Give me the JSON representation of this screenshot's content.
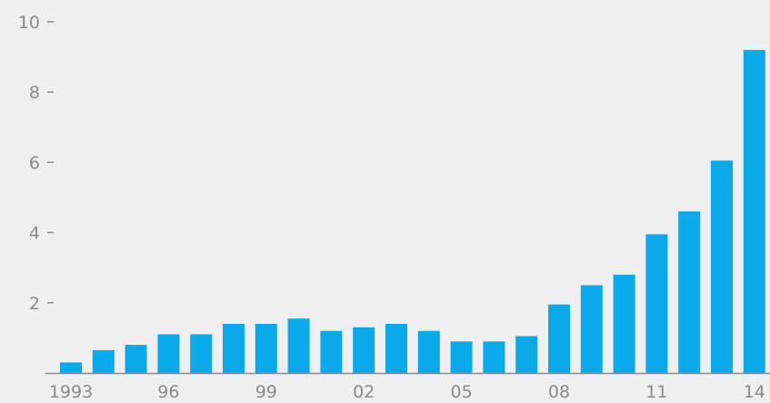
{
  "chart_data": {
    "type": "bar",
    "title": "",
    "xlabel": "",
    "ylabel": "",
    "categories": [
      "1993",
      "1994",
      "1995",
      "1996",
      "1997",
      "1998",
      "1999",
      "2000",
      "2001",
      "2002",
      "2003",
      "2004",
      "2005",
      "2006",
      "2007",
      "2008",
      "2009",
      "2010",
      "2011",
      "2012",
      "2013",
      "2014"
    ],
    "values": [
      0.3,
      0.65,
      0.8,
      1.1,
      1.1,
      1.4,
      1.4,
      1.55,
      1.2,
      1.3,
      1.4,
      1.2,
      0.9,
      0.9,
      1.05,
      1.95,
      2.5,
      2.8,
      3.95,
      4.6,
      6.05,
      9.2
    ],
    "ylim": [
      0,
      10
    ],
    "y_ticks": [
      {
        "value": 2,
        "label": "2"
      },
      {
        "value": 4,
        "label": "4"
      },
      {
        "value": 6,
        "label": "6"
      },
      {
        "value": 8,
        "label": "8"
      },
      {
        "value": 10,
        "label": "10"
      }
    ],
    "x_tick_labels": [
      {
        "index": 0,
        "label": "1993"
      },
      {
        "index": 3,
        "label": "96"
      },
      {
        "index": 6,
        "label": "99"
      },
      {
        "index": 9,
        "label": "02"
      },
      {
        "index": 12,
        "label": "05"
      },
      {
        "index": 15,
        "label": "08"
      },
      {
        "index": 18,
        "label": "11"
      },
      {
        "index": 21,
        "label": "14"
      }
    ],
    "grid": false,
    "legend": "none",
    "colors": {
      "bar": "#0aa9ea",
      "axis": "#8a8a8a",
      "background": "#efefef"
    }
  }
}
